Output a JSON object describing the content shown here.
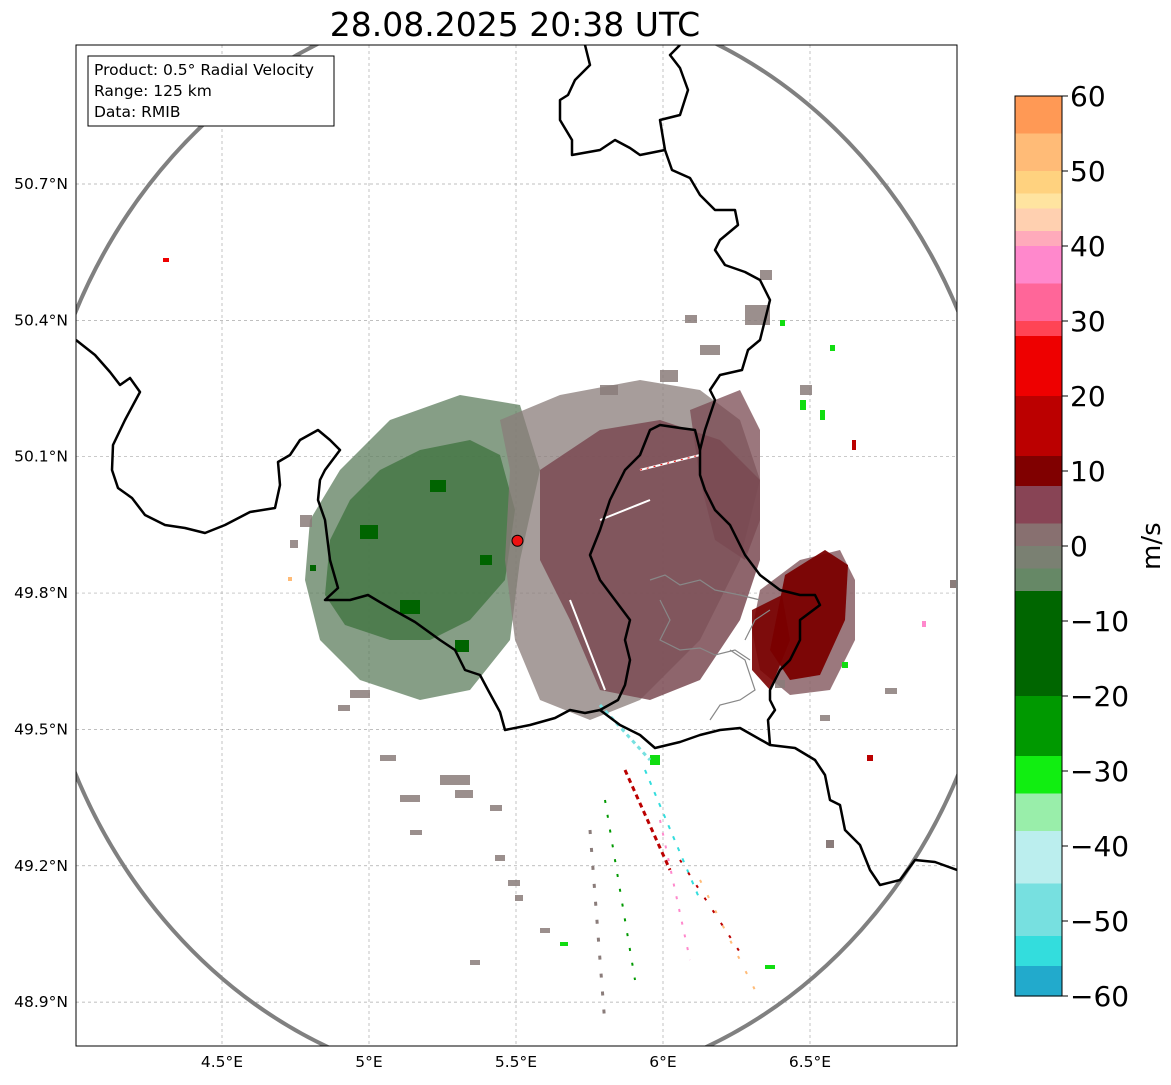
{
  "title": "28.08.2025 20:38 UTC",
  "info_box": {
    "product": "Product: 0.5° Radial Velocity",
    "range": "Range: 125 km",
    "data": "Data: RMIB"
  },
  "axes": {
    "lat_ticks": [
      "50.7°N",
      "50.4°N",
      "50.1°N",
      "49.8°N",
      "49.5°N",
      "49.2°N",
      "48.9°N"
    ],
    "lon_ticks": [
      "4.5°E",
      "5°E",
      "5.5°E",
      "6°E",
      "6.5°E"
    ],
    "lat_values": [
      50.7,
      50.4,
      50.1,
      49.8,
      49.5,
      49.2,
      48.9
    ],
    "lon_values": [
      4.5,
      5.0,
      5.5,
      6.0,
      6.5
    ]
  },
  "colorbar": {
    "unit": "m/s",
    "ticks": [
      "60",
      "50",
      "40",
      "30",
      "20",
      "10",
      "0",
      "−10",
      "−20",
      "−30",
      "−40",
      "−50",
      "−60"
    ],
    "tick_values": [
      60,
      50,
      40,
      30,
      20,
      10,
      0,
      -10,
      -20,
      -30,
      -40,
      -50,
      -60
    ],
    "stops": [
      {
        "v": 60,
        "c": "#ff9955"
      },
      {
        "v": 55,
        "c": "#ffbb77"
      },
      {
        "v": 50,
        "c": "#ffd27f"
      },
      {
        "v": 47,
        "c": "#ffe4a0"
      },
      {
        "v": 45,
        "c": "#ffd0b0"
      },
      {
        "v": 42,
        "c": "#ffaabb"
      },
      {
        "v": 40,
        "c": "#ff88cc"
      },
      {
        "v": 35,
        "c": "#ff6699"
      },
      {
        "v": 30,
        "c": "#ff4455"
      },
      {
        "v": 28,
        "c": "#ee0000"
      },
      {
        "v": 20,
        "c": "#bb0000"
      },
      {
        "v": 12,
        "c": "#800000"
      },
      {
        "v": 8,
        "c": "#884455"
      },
      {
        "v": 3,
        "c": "#887070"
      },
      {
        "v": 0,
        "c": "#7a8072"
      },
      {
        "v": -3,
        "c": "#668866"
      },
      {
        "v": -6,
        "c": "#006600"
      },
      {
        "v": -20,
        "c": "#009900"
      },
      {
        "v": -28,
        "c": "#11ee11"
      },
      {
        "v": -33,
        "c": "#99eeaa"
      },
      {
        "v": -38,
        "c": "#bbeeee"
      },
      {
        "v": -45,
        "c": "#77e0e0"
      },
      {
        "v": -52,
        "c": "#33dddd"
      },
      {
        "v": -56,
        "c": "#22aacc"
      },
      {
        "v": -60,
        "c": "#2277bb"
      }
    ]
  },
  "radar": {
    "lat": 49.915,
    "lon": 5.505,
    "marker_color": "#ee1111"
  },
  "colors": {
    "negative_dark": "#006400",
    "negative_mid": "#5e7d5e",
    "neutral": "#8a7c7a",
    "positive_mid": "#7a4a52",
    "positive_dark": "#7a0000",
    "range_ring": "#808080"
  }
}
